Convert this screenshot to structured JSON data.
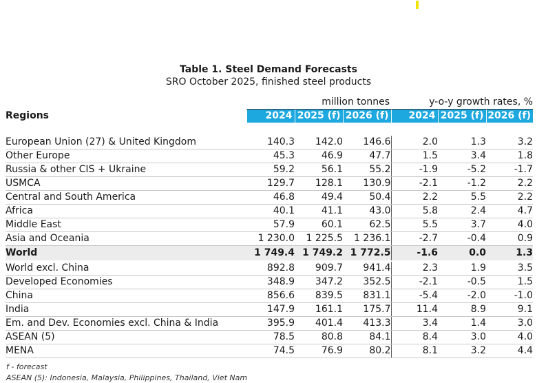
{
  "title": "Table 1. Steel Demand Forecasts",
  "subtitle": "SRO October 2025, finished steel products",
  "group_headers": {
    "left": "million tonnes",
    "right": "y-o-y growth rates, %"
  },
  "column_headers": {
    "regions": "Regions",
    "years": [
      "2024",
      "2025 (f)",
      "2026 (f)",
      "2024",
      "2025 (f)",
      "2026 (f)"
    ]
  },
  "accent_color": "#1ea8e0",
  "rows_main": [
    {
      "label": "European Union (27) & United Kingdom",
      "values": [
        "140.3",
        "142.0",
        "146.6",
        "2.0",
        "1.3",
        "3.2"
      ]
    },
    {
      "label": "Other Europe",
      "values": [
        "45.3",
        "46.9",
        "47.7",
        "1.5",
        "3.4",
        "1.8"
      ]
    },
    {
      "label": "Russia & other CIS + Ukraine",
      "values": [
        "59.2",
        "56.1",
        "55.2",
        "-1.9",
        "-5.2",
        "-1.7"
      ]
    },
    {
      "label": "USMCA",
      "values": [
        "129.7",
        "128.1",
        "130.9",
        "-2.1",
        "-1.2",
        "2.2"
      ]
    },
    {
      "label": "Central and South America",
      "values": [
        "46.8",
        "49.4",
        "50.4",
        "2.2",
        "5.5",
        "2.2"
      ]
    },
    {
      "label": "Africa",
      "values": [
        "40.1",
        "41.1",
        "43.0",
        "5.8",
        "2.4",
        "4.7"
      ]
    },
    {
      "label": "Middle East",
      "values": [
        "57.9",
        "60.1",
        "62.5",
        "5.5",
        "3.7",
        "4.0"
      ]
    },
    {
      "label": "Asia and Oceania",
      "values": [
        "1 230.0",
        "1 225.5",
        "1 236.1",
        "-2.7",
        "-0.4",
        "0.9"
      ]
    }
  ],
  "world_row": {
    "label": "World",
    "values": [
      "1 749.4",
      "1 749.2",
      "1 772.5",
      "-1.6",
      "0.0",
      "1.3"
    ]
  },
  "rows_sub": [
    {
      "label": "World excl. China",
      "values": [
        "892.8",
        "909.7",
        "941.4",
        "2.3",
        "1.9",
        "3.5"
      ]
    },
    {
      "label": "Developed Economies",
      "values": [
        "348.9",
        "347.2",
        "352.5",
        "-2.1",
        "-0.5",
        "1.5"
      ]
    },
    {
      "label": "China",
      "values": [
        "856.6",
        "839.5",
        "831.1",
        "-5.4",
        "-2.0",
        "-1.0"
      ]
    },
    {
      "label": "India",
      "values": [
        "147.9",
        "161.1",
        "175.7",
        "11.4",
        "8.9",
        "9.1"
      ]
    },
    {
      "label": "Em. and Dev. Economies excl. China & India",
      "values": [
        "395.9",
        "401.4",
        "413.3",
        "3.4",
        "1.4",
        "3.0"
      ]
    },
    {
      "label": "ASEAN (5)",
      "values": [
        "78.5",
        "80.8",
        "84.1",
        "8.4",
        "3.0",
        "4.0"
      ]
    },
    {
      "label": "MENA",
      "values": [
        "74.5",
        "76.9",
        "80.2",
        "8.1",
        "3.2",
        "4.4"
      ]
    }
  ],
  "notes": [
    "f - forecast",
    "ASEAN (5): Indonesia, Malaysia, Philippines, Thailand, Viet Nam"
  ]
}
